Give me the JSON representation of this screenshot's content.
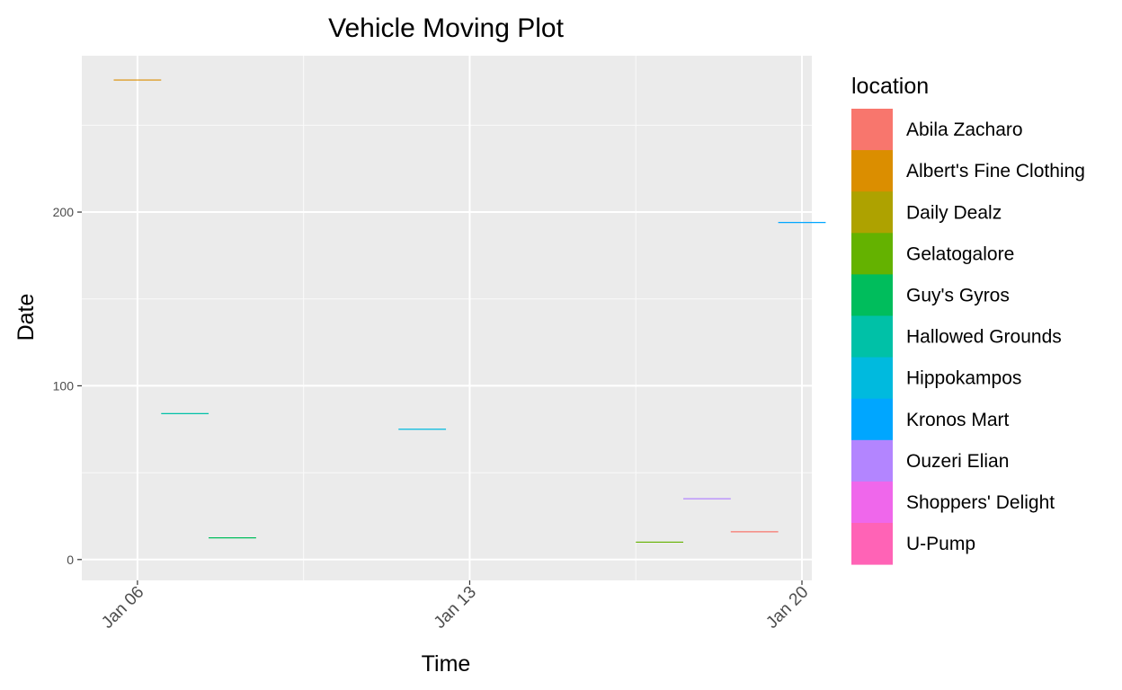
{
  "chart_data": {
    "type": "line",
    "title": "Vehicle Moving Plot",
    "xlabel": "Time",
    "ylabel": "Date",
    "x_type": "date",
    "xlim": [
      "2014-01-04 19:52",
      "2014-01-20 05:00"
    ],
    "ylim": [
      -12,
      290
    ],
    "x_ticks": [
      {
        "value": "2014-01-06",
        "label": "Jan 06"
      },
      {
        "value": "2014-01-13",
        "label": "Jan 13"
      },
      {
        "value": "2014-01-20",
        "label": "Jan 20"
      }
    ],
    "y_ticks": [
      0,
      100,
      200
    ],
    "grid": true,
    "background": "#ebebeb",
    "legend": {
      "title": "location",
      "position": "right",
      "entries": [
        {
          "name": "Abila Zacharo",
          "color": "#F8766D"
        },
        {
          "name": "Albert's Fine Clothing",
          "color": "#DB8E00"
        },
        {
          "name": "Daily Dealz",
          "color": "#AEA200"
        },
        {
          "name": "Gelatogalore",
          "color": "#64B200"
        },
        {
          "name": "Guy's Gyros",
          "color": "#00BD5C"
        },
        {
          "name": "Hallowed Grounds",
          "color": "#00C1A7"
        },
        {
          "name": "Hippokampos",
          "color": "#00BADE"
        },
        {
          "name": "Kronos Mart",
          "color": "#00A6FF"
        },
        {
          "name": "Ouzeri Elian",
          "color": "#B385FF"
        },
        {
          "name": "Shoppers' Delight",
          "color": "#EF67EB"
        },
        {
          "name": "U-Pump",
          "color": "#FF63B6"
        }
      ]
    },
    "series": [
      {
        "location": "Albert's Fine Clothing",
        "color": "#DB8E00",
        "x": [
          "2014-01-05 12:00",
          "2014-01-06 12:00"
        ],
        "y": [
          276,
          276
        ]
      },
      {
        "location": "Hallowed Grounds",
        "color": "#00C1A7",
        "x": [
          "2014-01-06 12:00",
          "2014-01-07 12:00"
        ],
        "y": [
          84,
          84
        ]
      },
      {
        "location": "Guy's Gyros",
        "color": "#00BD5C",
        "x": [
          "2014-01-07 12:00",
          "2014-01-08 12:00"
        ],
        "y": [
          12.5,
          12.5
        ]
      },
      {
        "location": "Hippokampos",
        "color": "#00BADE",
        "x": [
          "2014-01-11 12:00",
          "2014-01-12 12:00"
        ],
        "y": [
          75,
          75
        ]
      },
      {
        "location": "Gelatogalore",
        "color": "#64B200",
        "x": [
          "2014-01-16 12:00",
          "2014-01-17 12:00"
        ],
        "y": [
          10,
          10
        ]
      },
      {
        "location": "Ouzeri Elian",
        "color": "#B385FF",
        "x": [
          "2014-01-17 12:00",
          "2014-01-18 12:00"
        ],
        "y": [
          35,
          35
        ]
      },
      {
        "location": "Abila Zacharo",
        "color": "#F8766D",
        "x": [
          "2014-01-18 12:00",
          "2014-01-19 12:00"
        ],
        "y": [
          16,
          16
        ]
      },
      {
        "location": "Kronos Mart",
        "color": "#00A6FF",
        "x": [
          "2014-01-19 12:00",
          "2014-01-20 12:00"
        ],
        "y": [
          194,
          194
        ]
      }
    ]
  }
}
